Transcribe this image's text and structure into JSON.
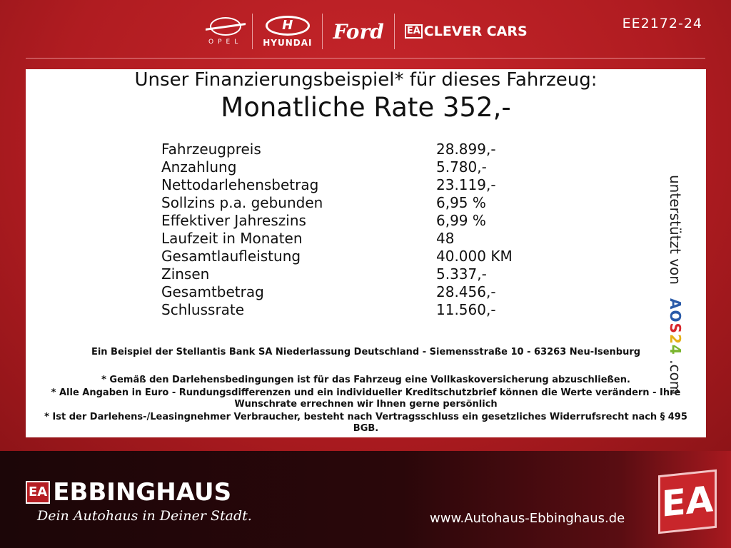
{
  "header": {
    "brands": {
      "opel": "OPEL",
      "hyundai": "HYUNDAI",
      "ford": "Ford",
      "clever_ea": "EA",
      "clever": "CLEVER CARS"
    },
    "code": "EE2172-24"
  },
  "panel": {
    "headline": "Unser Finanzierungsbeispiel* für dieses Fahrzeug:",
    "rate": "Monatliche Rate 352,-",
    "rows": [
      {
        "label": "Fahrzeugpreis",
        "value": "28.899,-"
      },
      {
        "label": "Anzahlung",
        "value": "5.780,-"
      },
      {
        "label": "Nettodarlehensbetrag",
        "value": "23.119,-"
      },
      {
        "label": "Sollzins p.a. gebunden",
        "value": "6,95 %"
      },
      {
        "label": "Effektiver Jahreszins",
        "value": "6,99 %"
      },
      {
        "label": "Laufzeit in Monaten",
        "value": "48"
      },
      {
        "label": "Gesamtlaufleistung",
        "value": "40.000 KM"
      },
      {
        "label": "Zinsen",
        "value": "5.337,-"
      },
      {
        "label": "Gesamtbetrag",
        "value": "28.456,-"
      },
      {
        "label": "Schlussrate",
        "value": "11.560,-"
      }
    ],
    "bank": "Ein Beispiel der Stellantis Bank SA Niederlassung Deutschland - Siemensstraße 10 - 63263 Neu-Isenburg",
    "notes": [
      "* Gemäß den Darlehensbedingungen ist für das Fahrzeug eine Vollkaskoversicherung abzuschließen.",
      "* Alle Angaben in Euro - Rundungsdifferenzen und ein individueller Kreditschutzbrief können die Werte verändern - Ihre Wunschrate errechnen wir Ihnen gerne persönlich",
      "* Ist der Darlehens-/Leasingnehmer Verbraucher, besteht nach Vertragsschluss ein gesetzliches Widerrufsrecht nach § 495 BGB."
    ],
    "side": {
      "prefix": "unterstützt von",
      "aos": "AOS24",
      ".com": ".com",
      "suffix": ".com"
    }
  },
  "footer": {
    "logo_ea": "EA",
    "logo": "EBBINGHAUS",
    "slogan": "Dein Autohaus in Deiner Stadt.",
    "url": "www.Autohaus-Ebbinghaus.de",
    "big_ea": "EA"
  }
}
